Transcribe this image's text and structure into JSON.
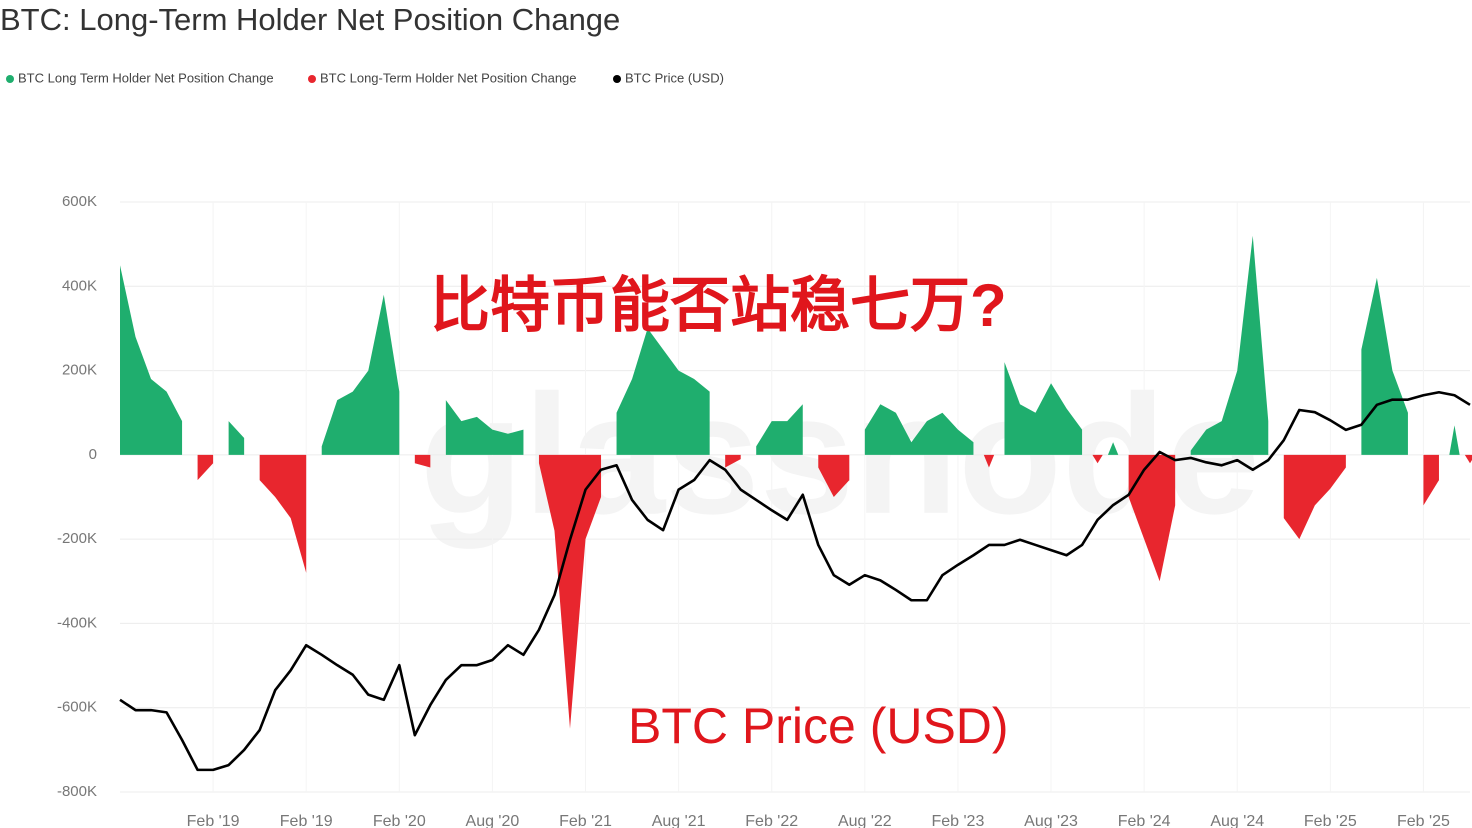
{
  "chart_data": {
    "type": "area",
    "title": "BTC: Long-Term Holder Net Position Change",
    "watermark": "glassnode",
    "annotations": [
      "比特币能否站稳七万?",
      "BTC Price (USD)"
    ],
    "categories": [
      null,
      null,
      null,
      null,
      null,
      null,
      "Feb '19",
      null,
      null,
      null,
      null,
      null,
      "Feb '19",
      null,
      null,
      null,
      null,
      null,
      "Feb '20",
      null,
      null,
      null,
      null,
      null,
      "Aug '20",
      null,
      null,
      null,
      null,
      null,
      "Feb '21",
      null,
      null,
      null,
      null,
      null,
      "Aug '21",
      null,
      null,
      null,
      null,
      null,
      "Feb '22",
      null,
      null,
      null,
      null,
      null,
      "Aug '22",
      null,
      null,
      null,
      null,
      null,
      "Feb '23",
      null,
      null,
      null,
      null,
      null,
      "Aug '23",
      null,
      null,
      null,
      null,
      null,
      "Feb '24",
      null,
      null,
      null,
      null,
      null,
      "Aug '24",
      null,
      null,
      null,
      null,
      null,
      "Feb '25",
      null,
      null,
      null,
      null,
      null,
      "Feb '25",
      null,
      null,
      null
    ],
    "series": [
      {
        "name": "BTC Long Term Holder Net Position Change",
        "color": "#1fae6e",
        "values": [
          450000,
          280000,
          180000,
          150000,
          80000,
          null,
          null,
          80000,
          40000,
          null,
          null,
          null,
          null,
          20000,
          130000,
          150000,
          200000,
          380000,
          150000,
          null,
          null,
          130000,
          80000,
          90000,
          60000,
          50000,
          60000,
          null,
          null,
          null,
          null,
          null,
          100000,
          180000,
          300000,
          250000,
          200000,
          180000,
          150000,
          null,
          null,
          20000,
          80000,
          80000,
          120000,
          null,
          null,
          null,
          60000,
          120000,
          100000,
          30000,
          80000,
          100000,
          60000,
          30000,
          null,
          220000,
          120000,
          100000,
          170000,
          110000,
          60000,
          null,
          30000,
          null,
          null,
          null,
          null,
          10000,
          60000,
          80000,
          200000,
          520000,
          80000,
          null,
          null,
          null,
          null,
          null,
          250000,
          420000,
          200000,
          100000,
          null,
          null,
          70000,
          null
        ]
      },
      {
        "name": "BTC Long-Term Holder Net Position Change",
        "color": "#e8262e",
        "values": [
          null,
          null,
          null,
          null,
          null,
          -60000,
          -20000,
          null,
          null,
          -60000,
          -100000,
          -150000,
          -280000,
          null,
          null,
          null,
          null,
          null,
          null,
          -20000,
          -30000,
          null,
          null,
          null,
          null,
          null,
          null,
          -20000,
          -180000,
          -650000,
          -200000,
          -100000,
          null,
          null,
          null,
          null,
          null,
          null,
          null,
          -30000,
          -10000,
          null,
          null,
          null,
          null,
          -30000,
          -100000,
          -60000,
          null,
          null,
          null,
          null,
          null,
          null,
          null,
          null,
          -30000,
          null,
          null,
          null,
          null,
          null,
          null,
          -20000,
          null,
          -100000,
          -200000,
          -300000,
          -120000,
          null,
          null,
          null,
          null,
          null,
          null,
          -150000,
          -200000,
          -120000,
          -80000,
          -30000,
          null,
          null,
          null,
          null,
          -120000,
          -60000,
          null,
          -20000
        ]
      },
      {
        "name": "BTC Price (USD)",
        "color": "#000000",
        "axis": "y2",
        "values": [
          12500,
          11100,
          11100,
          10800,
          7050,
          3000,
          3000,
          3650,
          5700,
          8400,
          13800,
          16500,
          19900,
          18600,
          17200,
          15900,
          13200,
          12500,
          17200,
          7700,
          11800,
          15200,
          17200,
          17200,
          17900,
          19900,
          18600,
          22000,
          26700,
          34200,
          41000,
          43700,
          44300,
          39600,
          36900,
          35500,
          41000,
          42300,
          45000,
          43700,
          41000,
          39600,
          38200,
          36900,
          40300,
          33500,
          29400,
          28100,
          29400,
          28700,
          27400,
          26000,
          26000,
          29400,
          30800,
          32100,
          33500,
          33500,
          34200,
          33500,
          32800,
          32100,
          33500,
          36900,
          38900,
          40300,
          43700,
          46100,
          45000,
          45300,
          44700,
          44300,
          45000,
          43700,
          45000,
          47700,
          51800,
          51500,
          50400,
          49100,
          49800,
          52500,
          53200,
          53200,
          53800,
          54200,
          53800,
          52500
        ]
      }
    ],
    "ylim": [
      -800000,
      600000
    ],
    "yticks": [
      {
        "value": -800000,
        "label": "-800K"
      },
      {
        "value": -600000,
        "label": "-600K"
      },
      {
        "value": -400000,
        "label": "-400K"
      },
      {
        "value": -200000,
        "label": "-200K"
      },
      0,
      {
        "value": 200000,
        "label": "200K"
      },
      {
        "value": 400000,
        "label": "400K"
      },
      {
        "value": 600000,
        "label": "600K"
      }
    ],
    "y2lim": [
      0,
      80000
    ],
    "grid": true
  }
}
